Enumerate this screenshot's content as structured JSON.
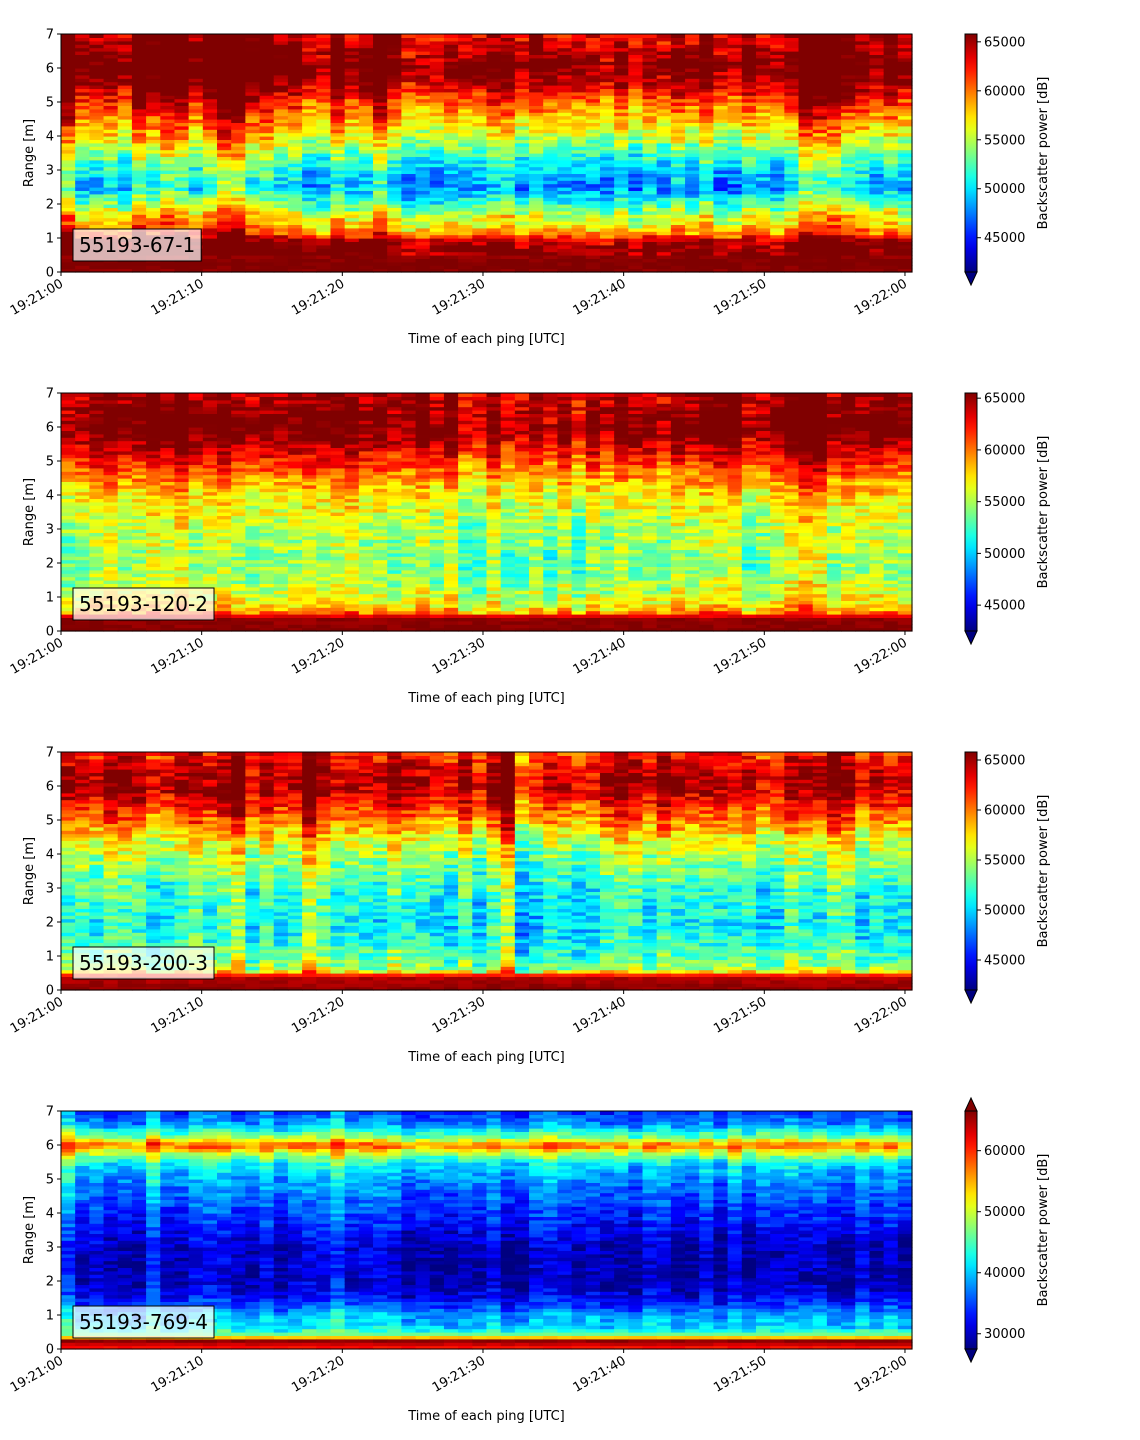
{
  "colors": {
    "colormap": "jet",
    "label_box_fill": "#ffffff",
    "label_box_alpha": 0.7
  },
  "chart_data": [
    {
      "type": "heatmap",
      "annotation": "55193-67-1",
      "xlabel": "Time of each ping [UTC]",
      "ylabel": "Range [m]",
      "colorbar_label": "Backscatter power [dB]",
      "x_ticks": [
        "19:21:00",
        "19:21:10",
        "19:21:20",
        "19:21:30",
        "19:21:40",
        "19:21:50",
        "19:22:00"
      ],
      "y_ticks": [
        "0",
        "1",
        "2",
        "3",
        "4",
        "5",
        "6",
        "7"
      ],
      "colorbar_ticks": [
        "45000",
        "50000",
        "55000",
        "60000",
        "65000"
      ],
      "clim": [
        41500,
        65800
      ],
      "colorbar_extend": "min",
      "ylim": [
        0,
        7
      ],
      "profile": [
        [
          0.0,
          65500
        ],
        [
          0.25,
          66000
        ],
        [
          0.9,
          64500
        ],
        [
          1.1,
          60000
        ],
        [
          1.3,
          57000
        ],
        [
          1.7,
          55000
        ],
        [
          2.0,
          51500
        ],
        [
          2.5,
          47500
        ],
        [
          3.0,
          49000
        ],
        [
          3.5,
          52000
        ],
        [
          4.0,
          55000
        ],
        [
          4.5,
          57500
        ],
        [
          5.0,
          60000
        ],
        [
          5.5,
          63500
        ],
        [
          6.0,
          66000
        ],
        [
          6.5,
          64000
        ],
        [
          7.0,
          63000
        ]
      ],
      "trend": [
        [
          0.0,
          2.0
        ],
        [
          1.0,
          3.0
        ],
        [
          2.0,
          2.0
        ],
        [
          3.0,
          1.0
        ],
        [
          4.0,
          0.5
        ],
        [
          5.0,
          0.5
        ],
        [
          6.0,
          1.0
        ],
        [
          7.0,
          1.0
        ]
      ],
      "noise": 4200
    },
    {
      "type": "heatmap",
      "annotation": "55193-120-2",
      "xlabel": "Time of each ping [UTC]",
      "ylabel": "Range [m]",
      "colorbar_label": "Backscatter power [dB]",
      "x_ticks": [
        "19:21:00",
        "19:21:10",
        "19:21:20",
        "19:21:30",
        "19:21:40",
        "19:21:50",
        "19:22:00"
      ],
      "y_ticks": [
        "0",
        "1",
        "2",
        "3",
        "4",
        "5",
        "6",
        "7"
      ],
      "colorbar_ticks": [
        "45000",
        "50000",
        "55000",
        "60000",
        "65000"
      ],
      "clim": [
        42500,
        65500
      ],
      "colorbar_extend": "min",
      "ylim": [
        0,
        7
      ],
      "profile": [
        [
          0.0,
          65500
        ],
        [
          0.4,
          65000
        ],
        [
          0.6,
          58000
        ],
        [
          1.0,
          56000
        ],
        [
          1.5,
          54500
        ],
        [
          2.0,
          54000
        ],
        [
          3.0,
          55000
        ],
        [
          4.0,
          57000
        ],
        [
          4.5,
          59000
        ],
        [
          5.0,
          61500
        ],
        [
          5.5,
          64000
        ],
        [
          6.0,
          66000
        ],
        [
          6.5,
          65000
        ],
        [
          7.0,
          64000
        ]
      ],
      "trend": [
        [
          0.0,
          0.5
        ],
        [
          1.0,
          0.5
        ],
        [
          2.0,
          0.0
        ],
        [
          3.0,
          -0.3
        ],
        [
          4.0,
          -0.5
        ],
        [
          5.0,
          -0.4
        ],
        [
          6.0,
          0.3
        ],
        [
          7.0,
          0.5
        ]
      ],
      "noise": 3800
    },
    {
      "type": "heatmap",
      "annotation": "55193-200-3",
      "xlabel": "Time of each ping [UTC]",
      "ylabel": "Range [m]",
      "colorbar_label": "Backscatter power [dB]",
      "x_ticks": [
        "19:21:00",
        "19:21:10",
        "19:21:20",
        "19:21:30",
        "19:21:40",
        "19:21:50",
        "19:22:00"
      ],
      "y_ticks": [
        "0",
        "1",
        "2",
        "3",
        "4",
        "5",
        "6",
        "7"
      ],
      "colorbar_ticks": [
        "45000",
        "50000",
        "55000",
        "60000",
        "65000"
      ],
      "clim": [
        42000,
        65800
      ],
      "colorbar_extend": "min",
      "ylim": [
        0,
        7
      ],
      "profile": [
        [
          0.0,
          65500
        ],
        [
          0.4,
          64500
        ],
        [
          0.6,
          55000
        ],
        [
          1.0,
          53000
        ],
        [
          1.5,
          51500
        ],
        [
          2.0,
          51000
        ],
        [
          3.0,
          52000
        ],
        [
          4.0,
          55000
        ],
        [
          4.5,
          57000
        ],
        [
          5.0,
          60000
        ],
        [
          5.5,
          62500
        ],
        [
          6.0,
          65000
        ],
        [
          6.5,
          64000
        ],
        [
          7.0,
          62000
        ]
      ],
      "trend": [
        [
          0.0,
          0.5
        ],
        [
          1.0,
          0.5
        ],
        [
          2.0,
          0.5
        ],
        [
          3.0,
          0.0
        ],
        [
          4.0,
          -0.5
        ],
        [
          5.0,
          -0.8
        ],
        [
          6.0,
          -0.3
        ],
        [
          7.0,
          0.0
        ]
      ],
      "noise": 4200
    },
    {
      "type": "heatmap",
      "annotation": "55193-769-4",
      "xlabel": "Time of each ping [UTC]",
      "ylabel": "Range [m]",
      "colorbar_label": "Backscatter power [dB]",
      "x_ticks": [
        "19:21:00",
        "19:21:10",
        "19:21:20",
        "19:21:30",
        "19:21:40",
        "19:21:50",
        "19:22:00"
      ],
      "y_ticks": [
        "0",
        "1",
        "2",
        "3",
        "4",
        "5",
        "6",
        "7"
      ],
      "colorbar_ticks": [
        "30000",
        "40000",
        "50000",
        "60000"
      ],
      "clim": [
        27500,
        66500
      ],
      "colorbar_extend": "both",
      "ylim": [
        0,
        7
      ],
      "profile": [
        [
          0.0,
          60000
        ],
        [
          0.25,
          66000
        ],
        [
          0.4,
          48000
        ],
        [
          0.6,
          41000
        ],
        [
          1.0,
          39000
        ],
        [
          1.5,
          32000
        ],
        [
          2.0,
          29500
        ],
        [
          3.0,
          30000
        ],
        [
          4.0,
          34000
        ],
        [
          5.0,
          38000
        ],
        [
          5.5,
          42000
        ],
        [
          5.8,
          50000
        ],
        [
          6.0,
          58000
        ],
        [
          6.2,
          48000
        ],
        [
          6.6,
          38000
        ],
        [
          7.0,
          34000
        ]
      ],
      "trend": [
        [
          0.0,
          0.5
        ],
        [
          1.0,
          0.5
        ],
        [
          2.0,
          0.3
        ],
        [
          3.0,
          0.0
        ],
        [
          4.0,
          -0.3
        ],
        [
          5.0,
          -0.5
        ],
        [
          6.0,
          -0.5
        ],
        [
          7.0,
          -0.5
        ]
      ],
      "noise": 4500
    }
  ]
}
